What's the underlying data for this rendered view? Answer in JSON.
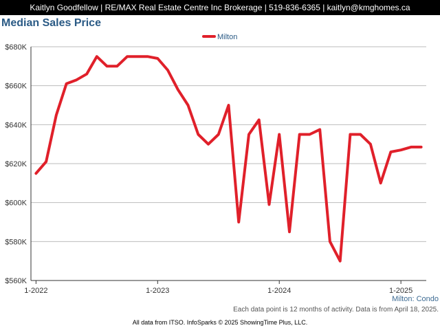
{
  "header": {
    "contact": "Kaitlyn Goodfellow | RE/MAX Real Estate Centre Inc Brokerage | 519-836-6365 | kaitlyn@kmghomes.ca"
  },
  "subtitle": "Milton: Condo",
  "note": "Each data point is 12 months of activity. Data is from April 18, 2025.",
  "footer": "All data from ITSO. InfoSparks © 2025 ShowingTime Plus, LLC.",
  "colors": {
    "series": "#e0202a",
    "title": "#2a5a85",
    "grid": "#bbbbbb"
  },
  "chart_data": {
    "type": "line",
    "title": "Median Sales Price",
    "legend": "top-center",
    "grid": true,
    "xlabel": "",
    "ylabel": "",
    "ylim": [
      560000,
      680000
    ],
    "y_ticks": [
      {
        "value": 560000,
        "label": "$560K"
      },
      {
        "value": 580000,
        "label": "$580K"
      },
      {
        "value": 600000,
        "label": "$600K"
      },
      {
        "value": 620000,
        "label": "$620K"
      },
      {
        "value": 640000,
        "label": "$640K"
      },
      {
        "value": 660000,
        "label": "$660K"
      },
      {
        "value": 680000,
        "label": "$680K"
      }
    ],
    "xlim": [
      "2022-01",
      "2025-04"
    ],
    "x_ticks": [
      {
        "value": "2022-01",
        "label": "1-2022"
      },
      {
        "value": "2023-01",
        "label": "1-2023"
      },
      {
        "value": "2024-01",
        "label": "1-2024"
      },
      {
        "value": "2025-01",
        "label": "1-2025"
      }
    ],
    "series": [
      {
        "name": "Milton",
        "x": [
          "2022-01",
          "2022-02",
          "2022-03",
          "2022-04",
          "2022-05",
          "2022-06",
          "2022-07",
          "2022-08",
          "2022-09",
          "2022-10",
          "2022-11",
          "2022-12",
          "2023-01",
          "2023-02",
          "2023-03",
          "2023-04",
          "2023-05",
          "2023-06",
          "2023-07",
          "2023-08",
          "2023-09",
          "2023-10",
          "2023-11",
          "2023-12",
          "2024-01",
          "2024-02",
          "2024-03",
          "2024-04",
          "2024-05",
          "2024-06",
          "2024-07",
          "2024-08",
          "2024-09",
          "2024-10",
          "2024-11",
          "2024-12",
          "2025-01",
          "2025-02",
          "2025-03"
        ],
        "values": [
          615000,
          621000,
          645000,
          661000,
          663000,
          666000,
          675000,
          670000,
          670000,
          675000,
          675000,
          675000,
          674000,
          668000,
          658000,
          650000,
          635000,
          630000,
          635000,
          650000,
          590000,
          635000,
          642500,
          599000,
          635000,
          585000,
          635000,
          635000,
          637500,
          580000,
          570000,
          635000,
          635000,
          630000,
          610000,
          626000,
          627000,
          628500,
          628500
        ]
      }
    ]
  }
}
